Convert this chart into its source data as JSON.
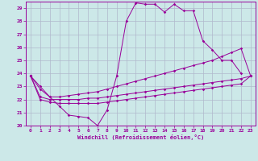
{
  "xlabel": "Windchill (Refroidissement éolien,°C)",
  "xlim": [
    -0.5,
    23.5
  ],
  "ylim": [
    20,
    29.5
  ],
  "xticks": [
    0,
    1,
    2,
    3,
    4,
    5,
    6,
    7,
    8,
    9,
    10,
    11,
    12,
    13,
    14,
    15,
    16,
    17,
    18,
    19,
    20,
    21,
    22,
    23
  ],
  "yticks": [
    20,
    21,
    22,
    23,
    24,
    25,
    26,
    27,
    28,
    29
  ],
  "bg_color": "#cce8e8",
  "grid_color": "#b0b8cc",
  "line_color": "#990099",
  "lines": [
    {
      "x": [
        0,
        1,
        2,
        3,
        4,
        5,
        6,
        7,
        8,
        9,
        10,
        11,
        12,
        13,
        14,
        15,
        16,
        17,
        18,
        19,
        20,
        21,
        22
      ],
      "y": [
        23.8,
        23.0,
        22.2,
        21.5,
        20.8,
        20.7,
        20.6,
        20.0,
        21.2,
        23.8,
        28.0,
        29.4,
        29.3,
        29.3,
        28.7,
        29.3,
        28.8,
        28.8,
        26.5,
        25.8,
        25.0,
        25.0,
        24.0
      ]
    },
    {
      "x": [
        0,
        1,
        2,
        3,
        4,
        5,
        6,
        7,
        8,
        9,
        10,
        11,
        12,
        13,
        14,
        15,
        16,
        17,
        18,
        19,
        20,
        21,
        22,
        23
      ],
      "y": [
        23.8,
        22.8,
        22.2,
        22.2,
        22.3,
        22.4,
        22.5,
        22.6,
        22.8,
        23.0,
        23.2,
        23.4,
        23.6,
        23.8,
        24.0,
        24.2,
        24.4,
        24.6,
        24.8,
        25.0,
        25.3,
        25.6,
        25.9,
        23.8
      ]
    },
    {
      "x": [
        0,
        1,
        2,
        3,
        4,
        5,
        6,
        7,
        8,
        9,
        10,
        11,
        12,
        13,
        14,
        15,
        16,
        17,
        18,
        19,
        20,
        21,
        22,
        23
      ],
      "y": [
        23.8,
        22.2,
        22.0,
        22.0,
        22.0,
        22.0,
        22.1,
        22.1,
        22.2,
        22.3,
        22.4,
        22.5,
        22.6,
        22.7,
        22.8,
        22.9,
        23.0,
        23.1,
        23.2,
        23.3,
        23.4,
        23.5,
        23.6,
        23.8
      ]
    },
    {
      "x": [
        0,
        1,
        2,
        3,
        4,
        5,
        6,
        7,
        8,
        9,
        10,
        11,
        12,
        13,
        14,
        15,
        16,
        17,
        18,
        19,
        20,
        21,
        22,
        23
      ],
      "y": [
        23.8,
        22.0,
        21.8,
        21.7,
        21.7,
        21.7,
        21.7,
        21.7,
        21.8,
        21.9,
        22.0,
        22.1,
        22.2,
        22.3,
        22.4,
        22.5,
        22.6,
        22.7,
        22.8,
        22.9,
        23.0,
        23.1,
        23.2,
        23.8
      ]
    }
  ]
}
